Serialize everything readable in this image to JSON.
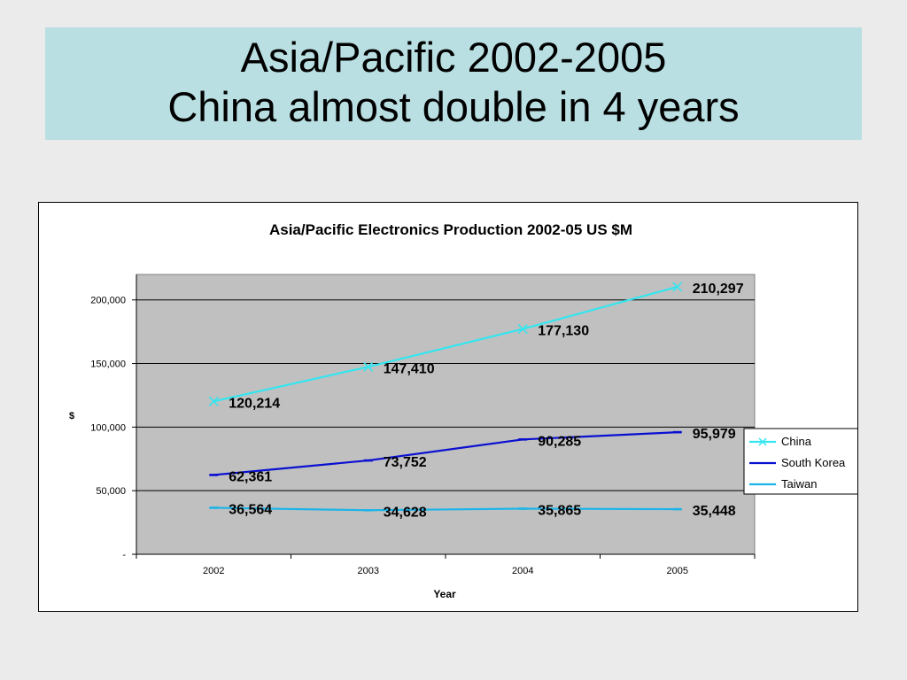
{
  "slide": {
    "title_line1": "Asia/Pacific 2002-2005",
    "title_line2": "China almost double in 4 years"
  },
  "chart_data": {
    "type": "line",
    "title": "Asia/Pacific Electronics Production 2002-05 US $M",
    "xlabel": "Year",
    "ylabel": "$",
    "categories": [
      "2002",
      "2003",
      "2004",
      "2005"
    ],
    "ylim": [
      0,
      220000
    ],
    "yticks": [
      0,
      50000,
      100000,
      150000,
      200000
    ],
    "ytick_labels": [
      "-",
      "50,000",
      "100,000",
      "150,000",
      "200,000"
    ],
    "grid": true,
    "legend_position": "right",
    "series": [
      {
        "name": "China",
        "values": [
          120214,
          147410,
          177130,
          210297
        ],
        "labels": [
          "120,214",
          "147,410",
          "177,130",
          "210,297"
        ],
        "color": "#33e6f0",
        "marker": "x"
      },
      {
        "name": "South Korea",
        "values": [
          62361,
          73752,
          90285,
          95979
        ],
        "labels": [
          "62,361",
          "73,752",
          "90,285",
          "95,979"
        ],
        "color": "#0a10d0",
        "marker": "dash"
      },
      {
        "name": "Taiwan",
        "values": [
          36564,
          34628,
          35865,
          35448
        ],
        "labels": [
          "36,564",
          "34,628",
          "35,865",
          "35,448"
        ],
        "color": "#1cb4e8",
        "marker": "dash"
      }
    ],
    "plot_background": "#c0c0c0"
  }
}
